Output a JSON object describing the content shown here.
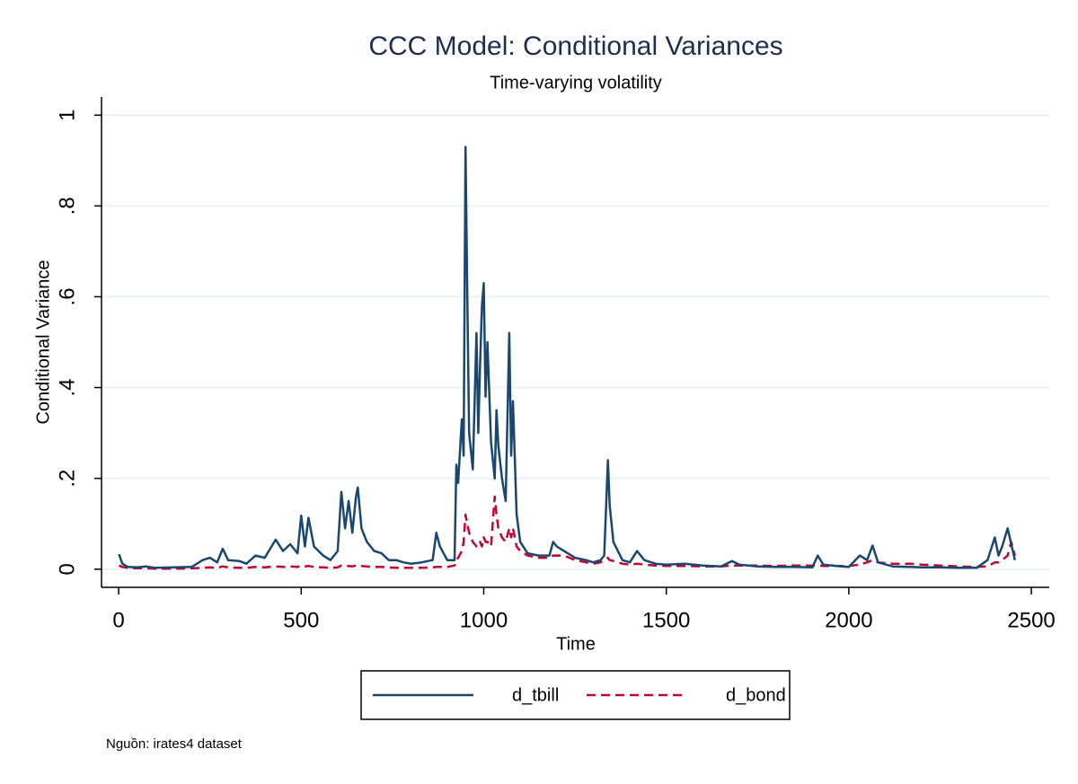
{
  "chart_data": {
    "type": "line",
    "title": "CCC Model: Conditional Variances",
    "subtitle": "Time-varying volatility",
    "x_label": "Time",
    "y_label": "Conditional Variance",
    "note": "Nguồn: irates4 dataset",
    "x": [
      1,
      10,
      25,
      50,
      75,
      100,
      150,
      200,
      230,
      250,
      270,
      285,
      300,
      330,
      350,
      375,
      400,
      430,
      450,
      470,
      490,
      500,
      510,
      520,
      535,
      560,
      580,
      600,
      610,
      620,
      630,
      640,
      650,
      655,
      665,
      680,
      700,
      720,
      740,
      760,
      780,
      800,
      830,
      860,
      870,
      880,
      900,
      920,
      925,
      930,
      940,
      945,
      950,
      955,
      960,
      970,
      980,
      985,
      990,
      995,
      1000,
      1005,
      1010,
      1020,
      1030,
      1035,
      1040,
      1050,
      1060,
      1070,
      1075,
      1080,
      1090,
      1100,
      1120,
      1150,
      1180,
      1190,
      1200,
      1220,
      1250,
      1280,
      1300,
      1320,
      1330,
      1340,
      1345,
      1355,
      1380,
      1400,
      1420,
      1440,
      1470,
      1500,
      1550,
      1600,
      1650,
      1680,
      1700,
      1750,
      1800,
      1850,
      1900,
      1915,
      1930,
      1980,
      2000,
      2030,
      2050,
      2065,
      2080,
      2120,
      2170,
      2200,
      2250,
      2300,
      2350,
      2380,
      2400,
      2410,
      2420,
      2435,
      2445,
      2455
    ],
    "series": [
      {
        "name": "d_tbill",
        "color": "#1a476f",
        "dashed": false,
        "values": [
          0.033,
          0.012,
          0.005,
          0.004,
          0.006,
          0.003,
          0.004,
          0.005,
          0.02,
          0.025,
          0.015,
          0.045,
          0.02,
          0.018,
          0.012,
          0.03,
          0.025,
          0.065,
          0.04,
          0.055,
          0.035,
          0.118,
          0.05,
          0.113,
          0.05,
          0.03,
          0.02,
          0.04,
          0.17,
          0.09,
          0.15,
          0.08,
          0.16,
          0.18,
          0.09,
          0.06,
          0.04,
          0.035,
          0.02,
          0.02,
          0.015,
          0.012,
          0.015,
          0.02,
          0.08,
          0.05,
          0.02,
          0.02,
          0.23,
          0.19,
          0.33,
          0.25,
          0.93,
          0.6,
          0.3,
          0.22,
          0.52,
          0.3,
          0.45,
          0.58,
          0.63,
          0.38,
          0.5,
          0.28,
          0.2,
          0.35,
          0.27,
          0.2,
          0.15,
          0.52,
          0.25,
          0.37,
          0.12,
          0.06,
          0.035,
          0.03,
          0.03,
          0.06,
          0.05,
          0.04,
          0.025,
          0.02,
          0.015,
          0.02,
          0.03,
          0.24,
          0.14,
          0.06,
          0.02,
          0.015,
          0.04,
          0.02,
          0.012,
          0.01,
          0.012,
          0.008,
          0.006,
          0.018,
          0.01,
          0.006,
          0.005,
          0.005,
          0.004,
          0.03,
          0.01,
          0.006,
          0.005,
          0.03,
          0.02,
          0.052,
          0.015,
          0.006,
          0.005,
          0.004,
          0.004,
          0.003,
          0.003,
          0.02,
          0.07,
          0.03,
          0.05,
          0.09,
          0.055,
          0.02
        ]
      },
      {
        "name": "d_bond",
        "color": "#c10534",
        "dashed": true,
        "values": [
          0.008,
          0.005,
          0.003,
          0.002,
          0.002,
          0.001,
          0.001,
          0.002,
          0.003,
          0.004,
          0.003,
          0.006,
          0.004,
          0.003,
          0.003,
          0.005,
          0.004,
          0.006,
          0.005,
          0.006,
          0.005,
          0.008,
          0.006,
          0.007,
          0.005,
          0.004,
          0.003,
          0.004,
          0.008,
          0.006,
          0.007,
          0.006,
          0.008,
          0.009,
          0.007,
          0.006,
          0.005,
          0.005,
          0.004,
          0.003,
          0.003,
          0.003,
          0.003,
          0.004,
          0.005,
          0.005,
          0.005,
          0.008,
          0.02,
          0.025,
          0.04,
          0.06,
          0.12,
          0.1,
          0.08,
          0.06,
          0.05,
          0.05,
          0.06,
          0.05,
          0.07,
          0.06,
          0.06,
          0.05,
          0.16,
          0.12,
          0.09,
          0.07,
          0.06,
          0.09,
          0.07,
          0.09,
          0.05,
          0.04,
          0.03,
          0.025,
          0.025,
          0.03,
          0.03,
          0.03,
          0.02,
          0.015,
          0.012,
          0.015,
          0.02,
          0.025,
          0.02,
          0.018,
          0.012,
          0.01,
          0.012,
          0.01,
          0.008,
          0.007,
          0.007,
          0.006,
          0.006,
          0.008,
          0.008,
          0.008,
          0.007,
          0.008,
          0.008,
          0.008,
          0.007,
          0.007,
          0.007,
          0.01,
          0.015,
          0.02,
          0.015,
          0.012,
          0.012,
          0.01,
          0.008,
          0.006,
          0.005,
          0.006,
          0.015,
          0.015,
          0.02,
          0.03,
          0.06,
          0.03
        ]
      }
    ],
    "xlim": [
      -47,
      2549
    ],
    "ylim": [
      -0.04,
      1.04
    ],
    "xticks": [
      0,
      500,
      1000,
      1500,
      2000,
      2500
    ],
    "yticks": [
      0,
      {
        "value": 0.2,
        "label": ".2"
      },
      {
        "value": 0.4,
        "label": ".4"
      },
      {
        "value": 0.6,
        "label": ".6"
      },
      {
        "value": 0.8,
        "label": ".8"
      },
      1
    ],
    "grid": true
  }
}
